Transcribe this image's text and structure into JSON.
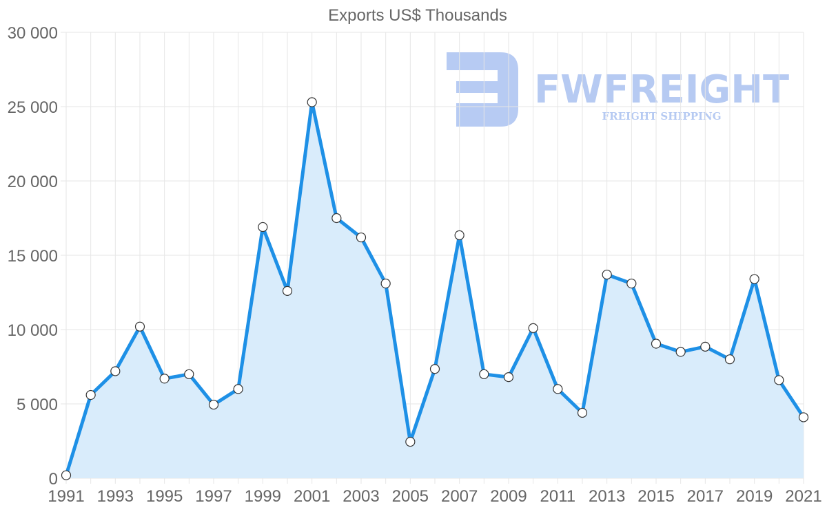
{
  "chart_data": {
    "type": "area",
    "title": "Exports US$ Thousands",
    "xlabel": "",
    "ylabel": "",
    "x": [
      1991,
      1992,
      1993,
      1994,
      1995,
      1996,
      1997,
      1998,
      1999,
      2000,
      2001,
      2002,
      2003,
      2004,
      2005,
      2006,
      2007,
      2008,
      2009,
      2010,
      2011,
      2012,
      2013,
      2014,
      2015,
      2016,
      2017,
      2018,
      2019,
      2020,
      2021
    ],
    "series": [
      {
        "name": "Exports",
        "values": [
          200,
          5600,
          7200,
          10200,
          6700,
          7000,
          4950,
          6000,
          16900,
          12600,
          25300,
          17500,
          16200,
          13100,
          2450,
          7350,
          16350,
          7000,
          6800,
          10100,
          6000,
          4400,
          13700,
          13100,
          9050,
          8500,
          8850,
          8000,
          13400,
          6600,
          4100
        ]
      }
    ],
    "xlim": [
      1991,
      2021
    ],
    "ylim": [
      0,
      30000
    ],
    "x_ticks": [
      "1991",
      "1993",
      "1995",
      "1997",
      "1999",
      "2001",
      "2003",
      "2005",
      "2007",
      "2009",
      "2011",
      "2013",
      "2015",
      "2017",
      "2019",
      "2021"
    ],
    "y_ticks": [
      "0",
      "5 000",
      "10 000",
      "15 000",
      "20 000",
      "25 000",
      "30 000"
    ],
    "grid": true,
    "colors": {
      "line": "#1e90e6",
      "fill": "#d9ecfb",
      "grid": "#e6e6e6",
      "marker_fill": "#ffffff",
      "marker_stroke": "#333333"
    }
  },
  "watermark": {
    "brand": "FWFREIGHT",
    "tagline": "FREIGHT SHIPPING",
    "color": "#b3c8f2"
  }
}
